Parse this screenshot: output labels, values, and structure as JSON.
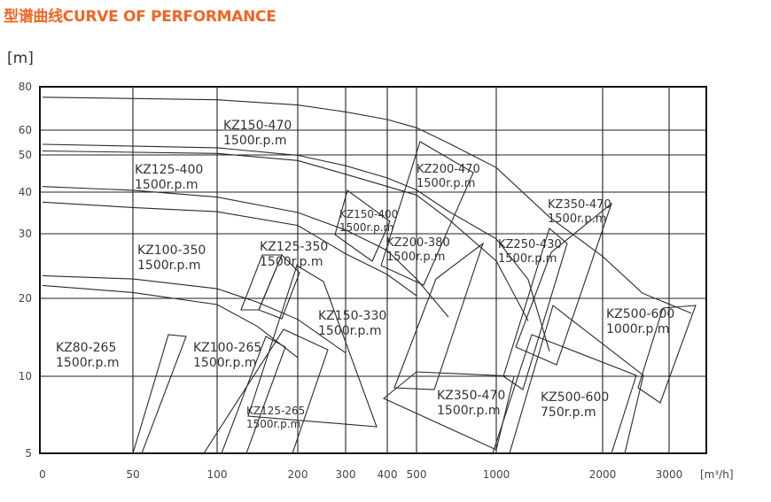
{
  "chart_data": {
    "type": "line",
    "title": "型谱曲线CURVE OF PERFORMANCE",
    "y_unit": "[m]",
    "x_unit": "[m³/h]",
    "y_scale": "log",
    "x_scale": "log",
    "ylim": [
      5,
      80
    ],
    "y_ticks": [
      "80",
      "60",
      "50",
      "40",
      "30",
      "20",
      "10",
      "5"
    ],
    "x_ticks": [
      "0",
      "50",
      "100",
      "200",
      "300",
      "400",
      "500",
      "1000",
      "2000",
      "3000"
    ],
    "grid": true,
    "curves": [
      {
        "points": [
          [
            0,
            75.2
          ],
          [
            100,
            74.0
          ],
          [
            200,
            71.6
          ],
          [
            300,
            68.4
          ],
          [
            400,
            64.9
          ],
          [
            500,
            61.1
          ],
          [
            700,
            54.8
          ],
          [
            1000,
            46.6
          ],
          [
            1500,
            34.0
          ],
          [
            2000,
            26.5
          ],
          [
            2600,
            20.8
          ],
          [
            3200,
            18.1
          ]
        ]
      },
      {
        "points": [
          [
            0,
            54.3
          ],
          [
            100,
            52.9
          ],
          [
            200,
            49.9
          ],
          [
            300,
            47.1
          ],
          [
            400,
            43.8
          ],
          [
            500,
            40.6
          ],
          [
            700,
            35.4
          ],
          [
            1000,
            29.2
          ],
          [
            1300,
            22.9
          ],
          [
            1500,
            13.2
          ]
        ]
      },
      {
        "points": [
          [
            0,
            51.6
          ],
          [
            100,
            50.6
          ],
          [
            200,
            48.5
          ],
          [
            300,
            44.8
          ],
          [
            500,
            39.3
          ],
          [
            700,
            33.5
          ],
          [
            1000,
            25.8
          ],
          [
            1300,
            17.1
          ]
        ]
      },
      {
        "points": [
          [
            0,
            41.5
          ],
          [
            50,
            40.5
          ],
          [
            100,
            38.8
          ],
          [
            200,
            35.1
          ],
          [
            300,
            30.9
          ],
          [
            400,
            27.4
          ],
          [
            500,
            23.0
          ],
          [
            700,
            17.6
          ]
        ]
      },
      {
        "points": [
          [
            0,
            37.6
          ],
          [
            50,
            36.3
          ],
          [
            100,
            35.3
          ],
          [
            200,
            32.0
          ],
          [
            300,
            26.9
          ],
          [
            400,
            23.7
          ],
          [
            500,
            20.4
          ]
        ]
      },
      {
        "points": [
          [
            0,
            23.5
          ],
          [
            50,
            23.0
          ],
          [
            100,
            21.5
          ],
          [
            150,
            19.5
          ],
          [
            200,
            17.3
          ],
          [
            300,
            13.0
          ]
        ]
      },
      {
        "points": [
          [
            0,
            22.0
          ],
          [
            50,
            20.9
          ],
          [
            100,
            19.2
          ],
          [
            150,
            16.4
          ],
          [
            200,
            12.4
          ]
        ]
      }
    ],
    "labels": [
      {
        "model": "KZ150-470",
        "speed": "1500r.p.m"
      },
      {
        "model": "KZ125-400",
        "speed": "1500r.p.m"
      },
      {
        "model": "KZ200-470",
        "speed": "1500r.p.m"
      },
      {
        "model": "KZ150-400",
        "speed": "1500r.p.m"
      },
      {
        "model": "KZ350-470",
        "speed": "1500r.p.m"
      },
      {
        "model": "KZ100-350",
        "speed": "1500r.p.m"
      },
      {
        "model": "KZ125-350",
        "speed": "1500r.p.m"
      },
      {
        "model": "KZ200-380",
        "speed": "1500r.p.m"
      },
      {
        "model": "KZ250-430",
        "speed": "1500r.p.m"
      },
      {
        "model": "KZ500-600",
        "speed": "1000r.p.m"
      },
      {
        "model": "KZ150-330",
        "speed": "1500r.p.m"
      },
      {
        "model": "KZ80-265",
        "speed": "1500r.p.m"
      },
      {
        "model": "KZ100-265",
        "speed": "1500r.p.m"
      },
      {
        "model": "KZ125-265",
        "speed": "1500r.p.m"
      },
      {
        "model": "KZ350-470",
        "speed": "1500r.p.m"
      },
      {
        "model": "KZ500-600",
        "speed": "750r.p.m"
      }
    ]
  }
}
